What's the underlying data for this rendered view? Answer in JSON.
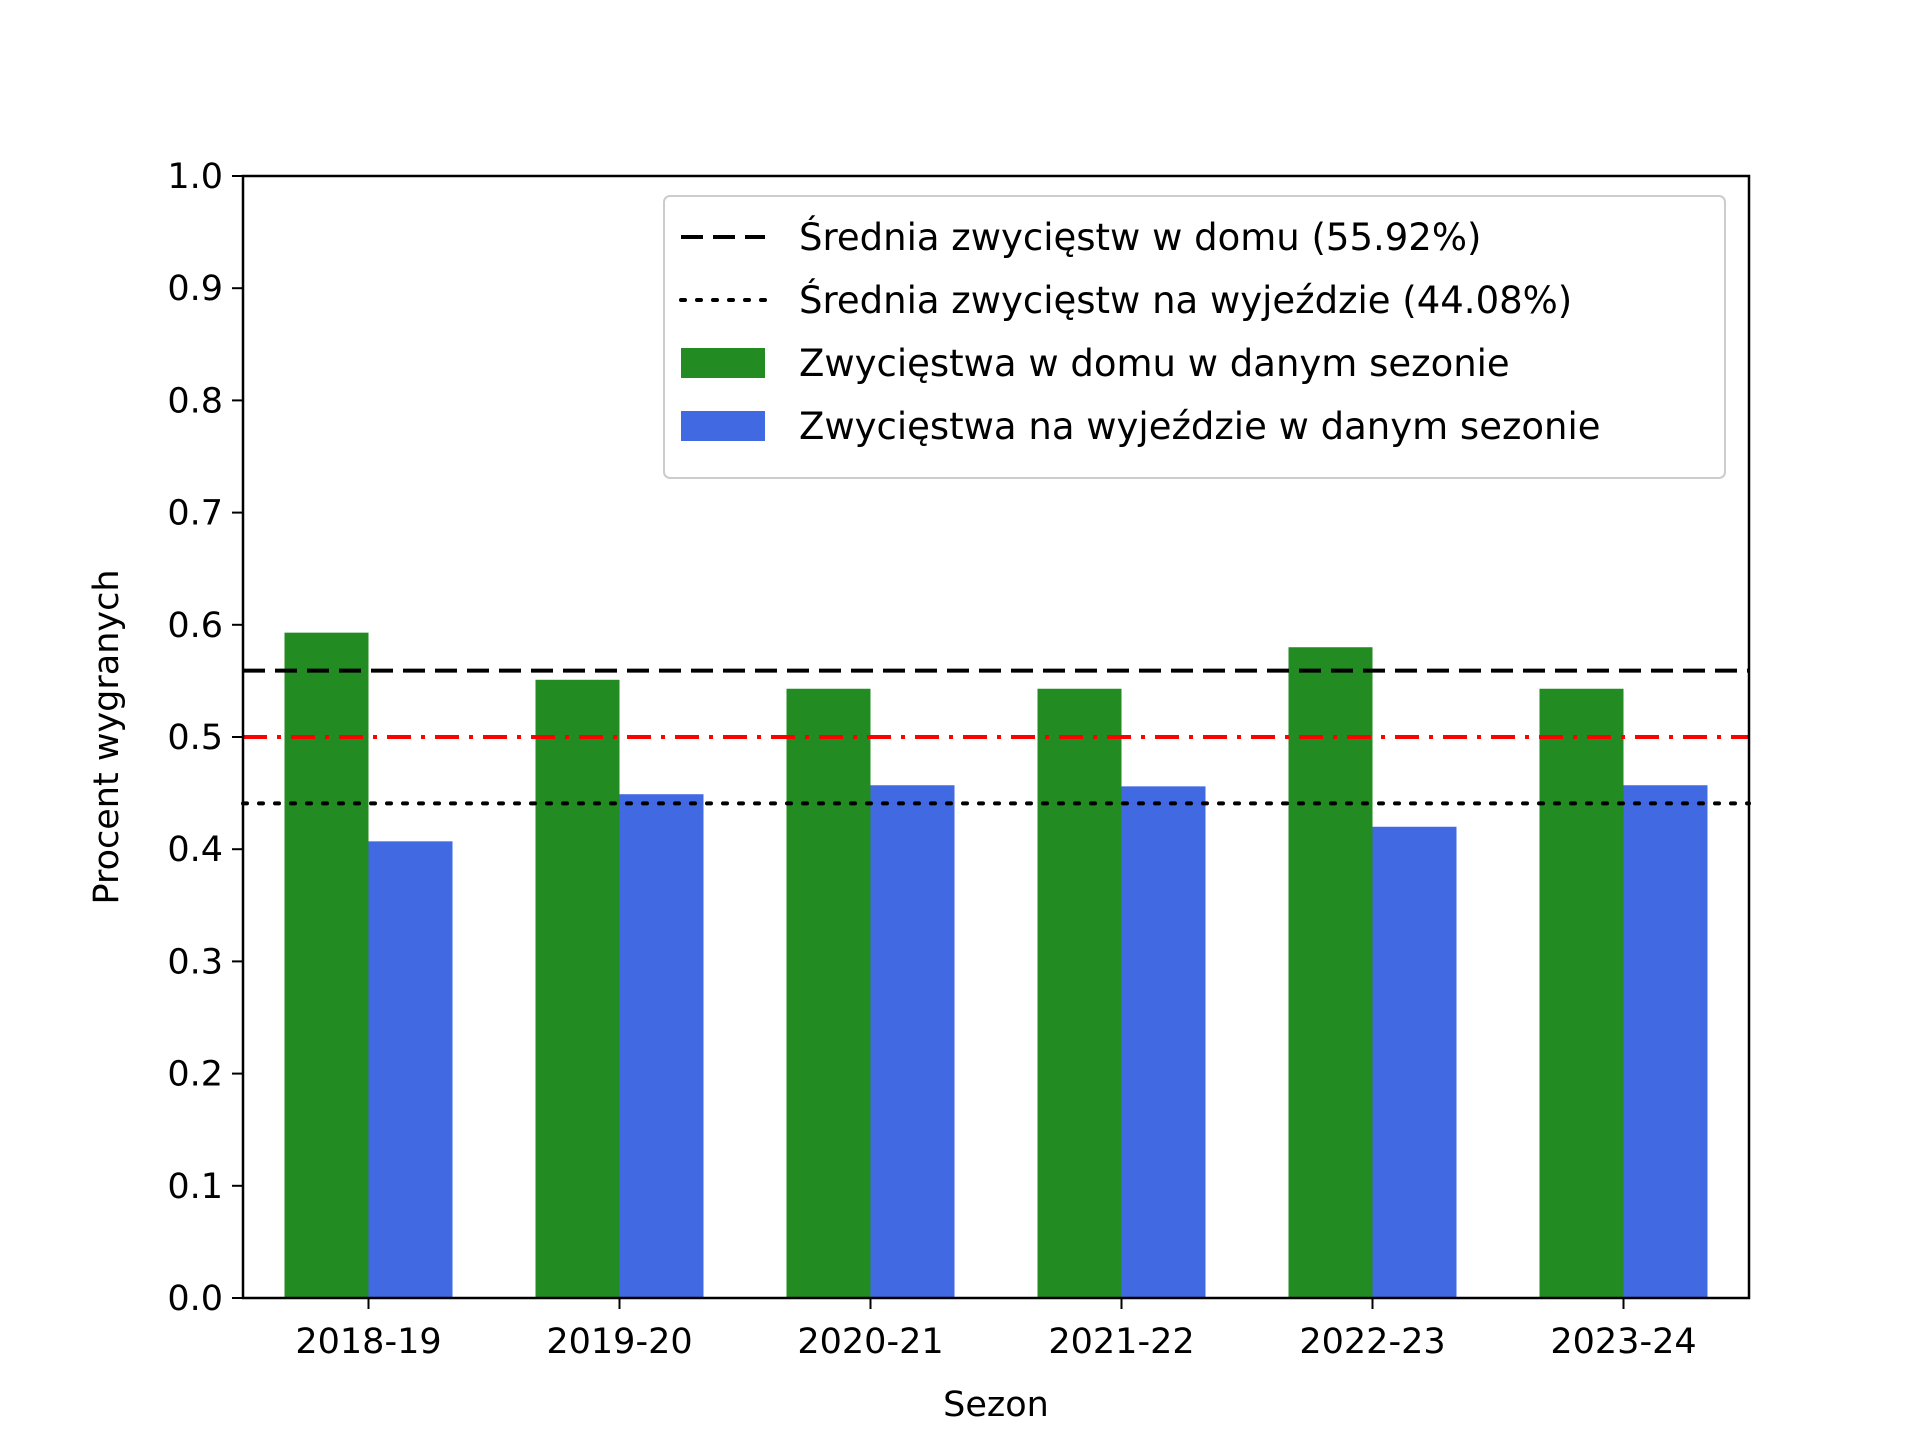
{
  "chart_data": {
    "type": "bar",
    "title": "",
    "xlabel": "Sezon",
    "ylabel": "Procent wygranych",
    "ylim": [
      0,
      1
    ],
    "yticks": [
      "0.0",
      "0.1",
      "0.2",
      "0.3",
      "0.4",
      "0.5",
      "0.6",
      "0.7",
      "0.8",
      "0.9",
      "1.0"
    ],
    "categories": [
      "2018-19",
      "2019-20",
      "2020-21",
      "2021-22",
      "2022-23",
      "2023-24"
    ],
    "series": [
      {
        "name": "Zwycięstwa w domu w danym sezonie",
        "color": "#228B22",
        "values": [
          0.593,
          0.551,
          0.543,
          0.543,
          0.58,
          0.543
        ]
      },
      {
        "name": "Zwycięstwa na wyjeździe w danym sezonie",
        "color": "#4169E1",
        "values": [
          0.407,
          0.449,
          0.457,
          0.456,
          0.42,
          0.457
        ]
      }
    ],
    "reference_lines": [
      {
        "name": "Średnia zwycięstw w domu (55.92%)",
        "value": 0.5592,
        "style": "dashed",
        "color": "#000000",
        "in_legend": true
      },
      {
        "name": "Średnia zwycięstw na wyjeździe (44.08%)",
        "value": 0.4408,
        "style": "dotted",
        "color": "#000000",
        "in_legend": true
      },
      {
        "name": "",
        "value": 0.5,
        "style": "dashdot",
        "color": "#FF0000",
        "in_legend": false
      }
    ],
    "legend_position": "top-right",
    "grid": false
  }
}
